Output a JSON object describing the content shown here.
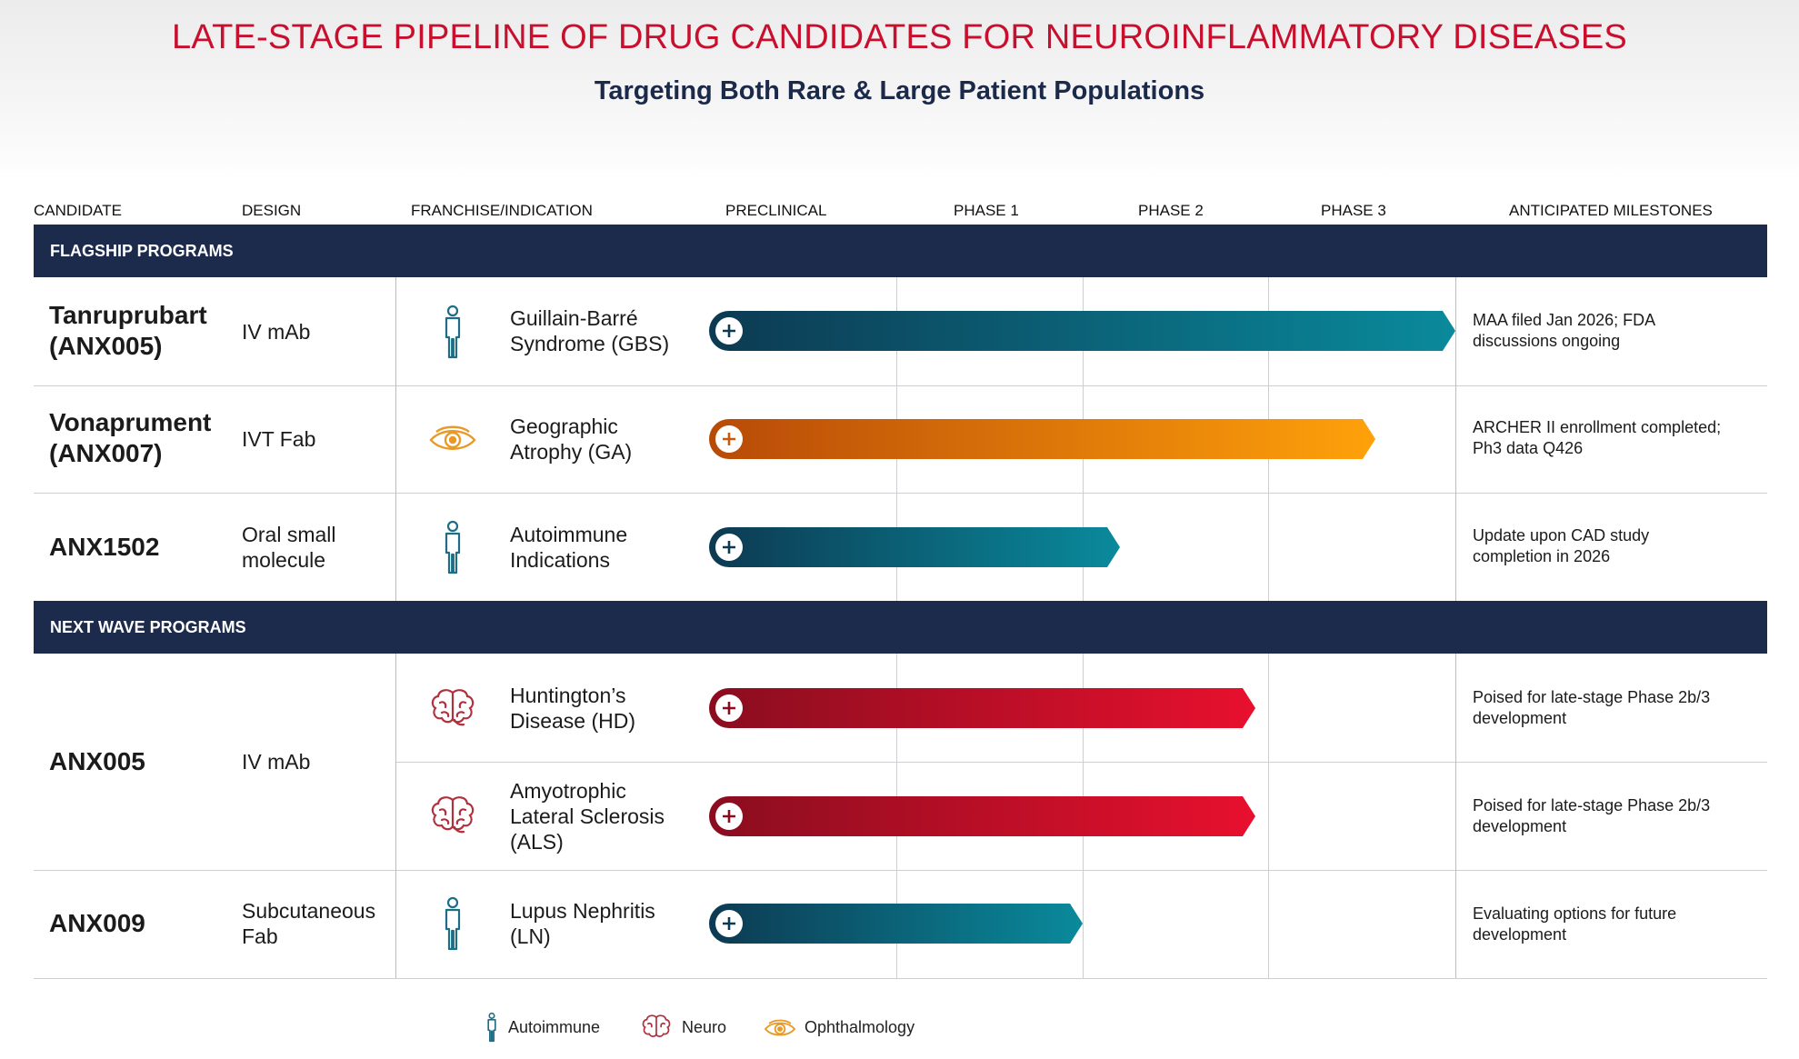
{
  "header": {
    "title": "LATE-STAGE PIPELINE OF DRUG CANDIDATES FOR NEUROINFLAMMATORY DISEASES",
    "subtitle": "Targeting Both Rare & Large Patient Populations"
  },
  "columns": {
    "candidate": "CANDIDATE",
    "design": "DESIGN",
    "franchise": "FRANCHISE/INDICATION",
    "preclinical": "PRECLINICAL",
    "phase1": "PHASE 1",
    "phase2": "PHASE 2",
    "phase3": "PHASE 3",
    "milestones": "ANTICIPATED MILESTONES"
  },
  "sections": {
    "flagship": "FLAGSHIP PROGRAMS",
    "next_wave": "NEXT WAVE PROGRAMS"
  },
  "rows": {
    "r0": {
      "candidate_l1": "Tanruprubart",
      "candidate_l2": "(ANX005)",
      "design": "IV mAb",
      "indication_l1": "Guillain-Barré",
      "indication_l2": "Syndrome (GBS)",
      "milestone_l1": "MAA filed Jan 2026; FDA",
      "milestone_l2": "discussions ongoing"
    },
    "r1": {
      "candidate_l1": "Vonaprument",
      "candidate_l2": "(ANX007)",
      "design": "IVT Fab",
      "indication_l1": "Geographic",
      "indication_l2": "Atrophy (GA)",
      "milestone_l1": "ARCHER II enrollment completed;",
      "milestone_l2": "Ph3 data Q426"
    },
    "r2": {
      "candidate": "ANX1502",
      "design_l1": "Oral small",
      "design_l2": "molecule",
      "indication_l1": "Autoimmune",
      "indication_l2": "Indications",
      "milestone_l1": "Update upon CAD study",
      "milestone_l2": "completion in 2026"
    },
    "r3": {
      "candidate": "ANX005",
      "design": "IV mAb",
      "indication_l1": "Huntington’s",
      "indication_l2": "Disease (HD)",
      "milestone_l1": "Poised for late-stage Phase 2b/3",
      "milestone_l2": "development"
    },
    "r4": {
      "indication_l1": "Amyotrophic",
      "indication_l2": "Lateral Sclerosis",
      "indication_l3": "(ALS)",
      "milestone_l1": "Poised for late-stage Phase 2b/3",
      "milestone_l2": "development"
    },
    "r5": {
      "candidate": "ANX009",
      "design_l1": "Subcutaneous",
      "design_l2": "Fab",
      "indication_l1": "Lupus Nephritis",
      "indication_l2": "(LN)",
      "milestone_l1": "Evaluating options for future",
      "milestone_l2": "development"
    }
  },
  "legend": {
    "autoimmune": "Autoimmune",
    "neuro": "Neuro",
    "ophthalmology": "Ophthalmology"
  },
  "colors": {
    "title": "#c8102e",
    "band": "#1c2b4c",
    "autoimmune_start": "#0c3a52",
    "autoimmune_end": "#0a8a9c",
    "ophthalmology_start": "#b84a08",
    "ophthalmology_end": "#ffa10a",
    "neuro_start": "#8a0d1f",
    "neuro_end": "#e8102e"
  },
  "chart_data": {
    "type": "bar",
    "title": "LATE-STAGE PIPELINE OF DRUG CANDIDATES FOR NEUROINFLAMMATORY DISEASES",
    "subtitle": "Targeting Both Rare & Large Patient Populations",
    "stage_labels": [
      "PRECLINICAL",
      "PHASE 1",
      "PHASE 2",
      "PHASE 3"
    ],
    "xlim": [
      0,
      4
    ],
    "unit": "development stages completed (0 = start of preclinical, 4 = end of phase 3)",
    "programs": [
      {
        "candidate": "Tanruprubart (ANX005)",
        "indication": "Guillain-Barré Syndrome (GBS)",
        "franchise": "autoimmune",
        "progress": 4.0
      },
      {
        "candidate": "Vonaprument (ANX007)",
        "indication": "Geographic Atrophy (GA)",
        "franchise": "ophthalmology",
        "progress": 3.57
      },
      {
        "candidate": "ANX1502",
        "indication": "Autoimmune Indications",
        "franchise": "autoimmune",
        "progress": 2.2
      },
      {
        "candidate": "ANX005",
        "indication": "Huntington’s Disease (HD)",
        "franchise": "neuro",
        "progress": 2.93
      },
      {
        "candidate": "ANX005",
        "indication": "Amyotrophic Lateral Sclerosis (ALS)",
        "franchise": "neuro",
        "progress": 2.93
      },
      {
        "candidate": "ANX009",
        "indication": "Lupus Nephritis (LN)",
        "franchise": "autoimmune",
        "progress": 2.0
      }
    ]
  }
}
